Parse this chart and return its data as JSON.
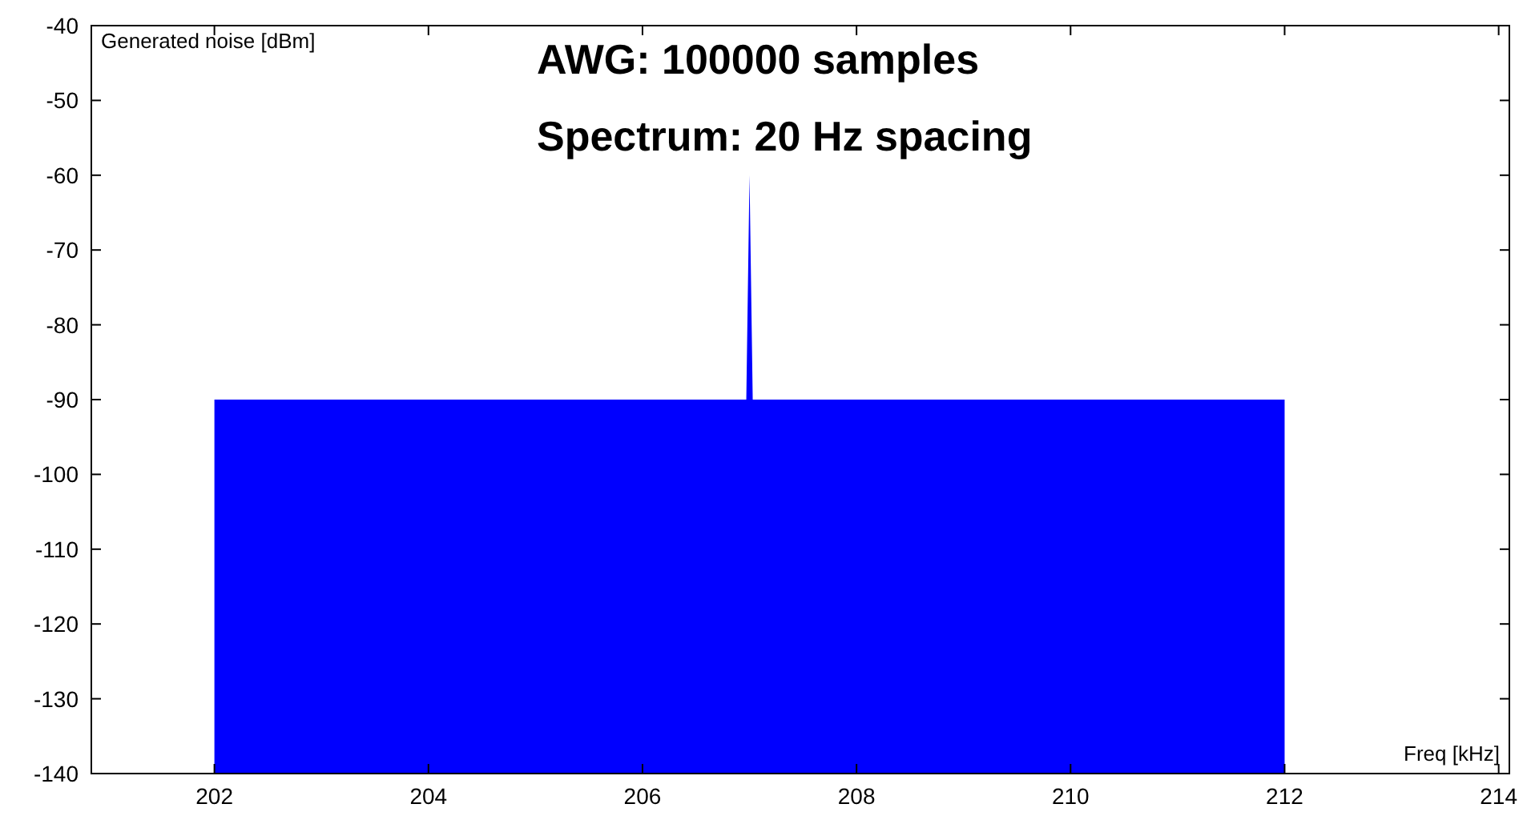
{
  "chart_data": {
    "type": "area",
    "title": "AWG: 100000  samples",
    "subtitle": "Spectrum: 20 Hz spacing",
    "xlabel": "Freq [kHz]",
    "ylabel": "Generated noise [dBm]",
    "x": [
      202,
      202,
      206.97,
      207,
      207.03,
      212,
      212
    ],
    "series": [
      {
        "color": "#0000ff",
        "values": [
          -140,
          -90,
          -90,
          -60,
          -90,
          -90,
          -140
        ]
      }
    ],
    "xlim": [
      200.85,
      214.1
    ],
    "xticks": [
      202,
      204,
      206,
      208,
      210,
      212,
      214
    ],
    "ylim": [
      -140,
      -40
    ],
    "yticks": [
      -140,
      -130,
      -120,
      -110,
      -100,
      -90,
      -80,
      -70,
      -60,
      -50,
      -40
    ],
    "grid": false
  }
}
